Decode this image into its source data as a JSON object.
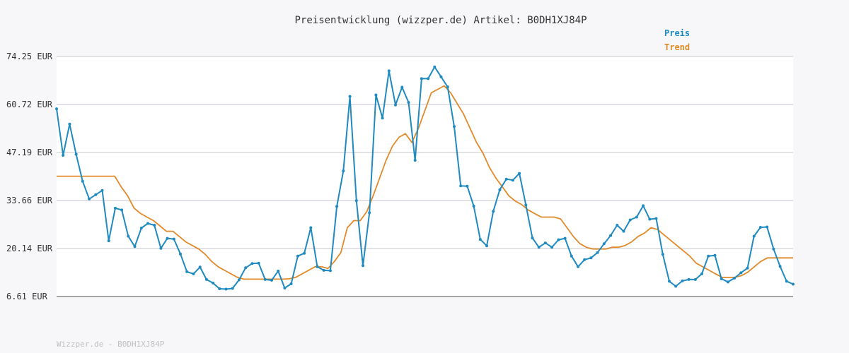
{
  "chart_data": {
    "type": "line",
    "title": "Preisentwicklung (wizzper.de) Artikel: B0DH1XJ84P",
    "y_ticks": [
      "74.25 EUR",
      "60.72 EUR",
      "47.19 EUR",
      "33.66 EUR",
      "20.14 EUR",
      "6.61 EUR"
    ],
    "ylim": [
      6.61,
      74.25
    ],
    "grid": true,
    "legend": "top-right",
    "footer": "Wizzper.de - B0DH1XJ84P",
    "series": [
      {
        "name": "Preis",
        "color": "#1f8ac0",
        "values": [
          59.5,
          46.4,
          55.2,
          46.7,
          39.1,
          34.1,
          35.3,
          36.5,
          22.3,
          31.5,
          31.0,
          23.6,
          20.7,
          25.9,
          27.2,
          26.7,
          20.2,
          23.0,
          22.8,
          18.6,
          13.6,
          13.0,
          14.9,
          11.4,
          10.4,
          8.8,
          8.7,
          8.9,
          11.3,
          14.7,
          15.9,
          16.0,
          11.4,
          11.2,
          13.8,
          9.0,
          10.2,
          18.0,
          18.8,
          26.0,
          15.0,
          14.0,
          13.9,
          32.0,
          42.0,
          63.0,
          33.6,
          15.3,
          30.2,
          63.4,
          56.9,
          70.2,
          60.6,
          65.6,
          61.3,
          45.0,
          68.0,
          68.0,
          71.3,
          68.5,
          65.7,
          54.5,
          37.8,
          37.7,
          32.1,
          22.7,
          20.9,
          30.6,
          36.7,
          39.7,
          39.4,
          41.3,
          32.4,
          23.1,
          20.5,
          21.7,
          20.5,
          22.6,
          23.0,
          18.0,
          15.0,
          17.0,
          17.5,
          19.0,
          21.5,
          23.8,
          26.7,
          25.0,
          28.2,
          29.0,
          32.2,
          28.4,
          28.6,
          18.5,
          10.9,
          9.5,
          11.0,
          11.4,
          11.4,
          13.0,
          18.0,
          18.2,
          11.6,
          10.7,
          11.8,
          13.3,
          14.6,
          23.6,
          26.1,
          26.2,
          20.0,
          15.1,
          10.9,
          10.1
        ]
      },
      {
        "name": "Trend",
        "color": "#e08a2a",
        "values": [
          40.5,
          40.5,
          40.5,
          40.5,
          40.5,
          40.5,
          40.5,
          40.5,
          40.5,
          40.5,
          37.5,
          35.0,
          31.5,
          30.0,
          29.0,
          28.0,
          26.5,
          25.0,
          25.0,
          23.5,
          22.0,
          21.0,
          20.0,
          18.5,
          16.5,
          15.0,
          14.0,
          13.0,
          12.0,
          11.5,
          11.5,
          11.5,
          11.5,
          11.5,
          11.5,
          11.5,
          11.6,
          12.0,
          13.0,
          14.0,
          15.0,
          15.0,
          14.5,
          16.5,
          19.0,
          26.0,
          28.0,
          28.0,
          30.5,
          35.0,
          40.0,
          45.0,
          49.0,
          51.5,
          52.5,
          50.0,
          54.0,
          59.0,
          64.0,
          65.0,
          66.0,
          64.0,
          61.0,
          58.0,
          54.0,
          50.0,
          47.0,
          43.0,
          40.0,
          37.5,
          35.0,
          33.5,
          32.5,
          31.0,
          30.0,
          29.0,
          29.0,
          29.0,
          28.5,
          26.0,
          23.5,
          21.5,
          20.5,
          20.0,
          20.0,
          20.0,
          20.5,
          20.5,
          21.0,
          22.0,
          23.5,
          24.5,
          26.0,
          25.5,
          24.0,
          22.5,
          21.0,
          19.5,
          18.0,
          16.0,
          15.0,
          14.0,
          13.0,
          12.0,
          12.0,
          12.0,
          12.5,
          13.5,
          15.0,
          16.5,
          17.5,
          17.5,
          17.5,
          17.5,
          17.5
        ]
      }
    ]
  }
}
